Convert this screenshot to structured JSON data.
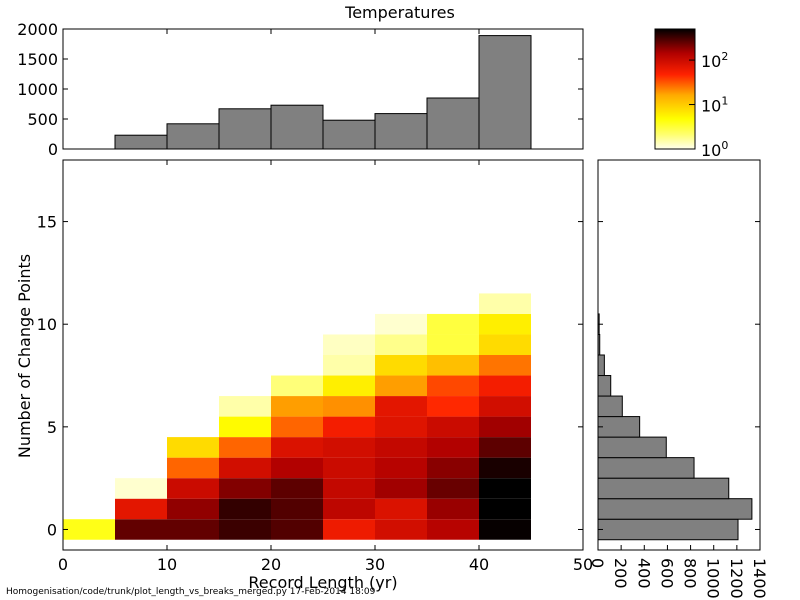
{
  "chart_data": [
    {
      "type": "bar",
      "name": "top-histogram",
      "title": "Temperatures",
      "bin_edges": [
        0,
        5,
        10,
        15,
        20,
        25,
        30,
        35,
        40,
        45,
        50
      ],
      "values": [
        0,
        230,
        420,
        670,
        730,
        480,
        590,
        850,
        1890,
        0
      ],
      "xlim": [
        0,
        50
      ],
      "ylim": [
        0,
        2000
      ],
      "yticks": [
        "0",
        "500",
        "1000",
        "1500",
        "2000"
      ]
    },
    {
      "type": "heatmap",
      "name": "main-2d-histogram",
      "xlabel": "Record Length (yr)",
      "ylabel": "Number of Change Points",
      "xlim": [
        0,
        50
      ],
      "ylim": [
        -1,
        18
      ],
      "xticks": [
        "0",
        "10",
        "20",
        "30",
        "40",
        "50"
      ],
      "yticks": [
        "0",
        "5",
        "10",
        "15"
      ],
      "x_bin_width": 5,
      "cells": [
        [
          0,
          0,
          4
        ],
        [
          5,
          0,
          250
        ],
        [
          10,
          0,
          250
        ],
        [
          15,
          0,
          330
        ],
        [
          20,
          0,
          280
        ],
        [
          25,
          0,
          60
        ],
        [
          30,
          0,
          90
        ],
        [
          35,
          0,
          130
        ],
        [
          40,
          0,
          480
        ],
        [
          5,
          1,
          70
        ],
        [
          10,
          1,
          180
        ],
        [
          15,
          1,
          350
        ],
        [
          20,
          1,
          280
        ],
        [
          25,
          1,
          120
        ],
        [
          30,
          1,
          80
        ],
        [
          35,
          1,
          170
        ],
        [
          40,
          1,
          700
        ],
        [
          5,
          2,
          1.2
        ],
        [
          10,
          2,
          100
        ],
        [
          15,
          2,
          200
        ],
        [
          20,
          2,
          260
        ],
        [
          25,
          2,
          110
        ],
        [
          30,
          2,
          160
        ],
        [
          35,
          2,
          240
        ],
        [
          40,
          2,
          520
        ],
        [
          10,
          3,
          28
        ],
        [
          15,
          3,
          90
        ],
        [
          20,
          3,
          140
        ],
        [
          25,
          3,
          100
        ],
        [
          30,
          3,
          130
        ],
        [
          35,
          3,
          190
        ],
        [
          40,
          3,
          420
        ],
        [
          10,
          4,
          8
        ],
        [
          15,
          4,
          28
        ],
        [
          20,
          4,
          80
        ],
        [
          25,
          4,
          90
        ],
        [
          30,
          4,
          110
        ],
        [
          35,
          4,
          140
        ],
        [
          40,
          4,
          260
        ],
        [
          15,
          5,
          5
        ],
        [
          20,
          5,
          28
        ],
        [
          25,
          5,
          55
        ],
        [
          30,
          5,
          75
        ],
        [
          35,
          5,
          100
        ],
        [
          40,
          5,
          160
        ],
        [
          15,
          6,
          1.5
        ],
        [
          20,
          6,
          18
        ],
        [
          25,
          6,
          20
        ],
        [
          30,
          6,
          70
        ],
        [
          35,
          6,
          45
        ],
        [
          40,
          6,
          90
        ],
        [
          20,
          7,
          2
        ],
        [
          25,
          7,
          6
        ],
        [
          30,
          7,
          18
        ],
        [
          35,
          7,
          35
        ],
        [
          40,
          7,
          55
        ],
        [
          25,
          8,
          1.5
        ],
        [
          30,
          8,
          8
        ],
        [
          35,
          8,
          12
        ],
        [
          40,
          8,
          25
        ],
        [
          25,
          9,
          1.3
        ],
        [
          30,
          9,
          1.8
        ],
        [
          35,
          9,
          3
        ],
        [
          40,
          9,
          8
        ],
        [
          30,
          10,
          1.2
        ],
        [
          35,
          10,
          3
        ],
        [
          40,
          10,
          6
        ],
        [
          40,
          11,
          1.5
        ]
      ]
    },
    {
      "type": "bar",
      "orientation": "horizontal",
      "name": "right-histogram",
      "categories": [
        0,
        1,
        2,
        3,
        4,
        5,
        6,
        7,
        8,
        9,
        10,
        11
      ],
      "values": [
        1210,
        1330,
        1130,
        830,
        590,
        360,
        210,
        110,
        55,
        15,
        10,
        0
      ],
      "xlim": [
        0,
        1400
      ],
      "xticks": [
        "0",
        "200",
        "400",
        "600",
        "800",
        "1000",
        "1200",
        "1400"
      ]
    }
  ],
  "colorbar": {
    "cmap": "hot_r",
    "scale": "log",
    "range": [
      1,
      500
    ],
    "ticks": [
      {
        "base": "10",
        "exp": "0",
        "value": 1
      },
      {
        "base": "10",
        "exp": "1",
        "value": 10
      },
      {
        "base": "10",
        "exp": "2",
        "value": 100
      }
    ]
  },
  "footer": "Homogenisation/code/trunk/plot_length_vs_breaks_merged.py   17-Feb-2014 18:09"
}
